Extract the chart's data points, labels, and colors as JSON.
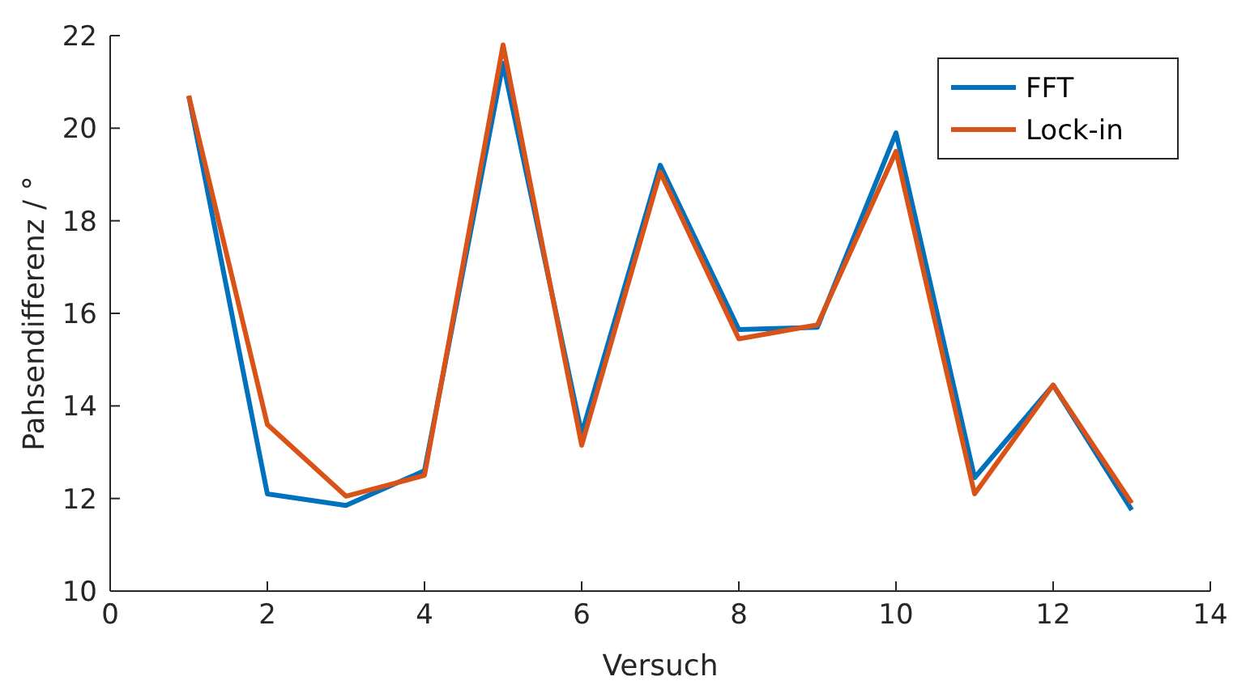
{
  "chart_data": {
    "type": "line",
    "xlabel": "Versuch",
    "ylabel": "Pahsendifferenz / °",
    "x": [
      1,
      2,
      3,
      4,
      5,
      6,
      7,
      8,
      9,
      10,
      11,
      12,
      13
    ],
    "xlim": [
      0,
      14
    ],
    "xticks": [
      0,
      2,
      4,
      6,
      8,
      10,
      12,
      14
    ],
    "ylim": [
      10,
      22
    ],
    "yticks": [
      10,
      12,
      14,
      16,
      18,
      20,
      22
    ],
    "legend": "top right",
    "series": [
      {
        "name": "FFT",
        "color": "#0072bd",
        "values": [
          20.7,
          12.1,
          11.85,
          12.6,
          21.4,
          13.4,
          19.2,
          15.65,
          15.7,
          19.9,
          12.45,
          14.45,
          11.75
        ]
      },
      {
        "name": "Lock-in",
        "color": "#d95319",
        "values": [
          20.7,
          13.6,
          12.05,
          12.5,
          21.8,
          13.15,
          19.05,
          15.45,
          15.75,
          19.5,
          12.1,
          14.45,
          11.9
        ]
      }
    ]
  }
}
